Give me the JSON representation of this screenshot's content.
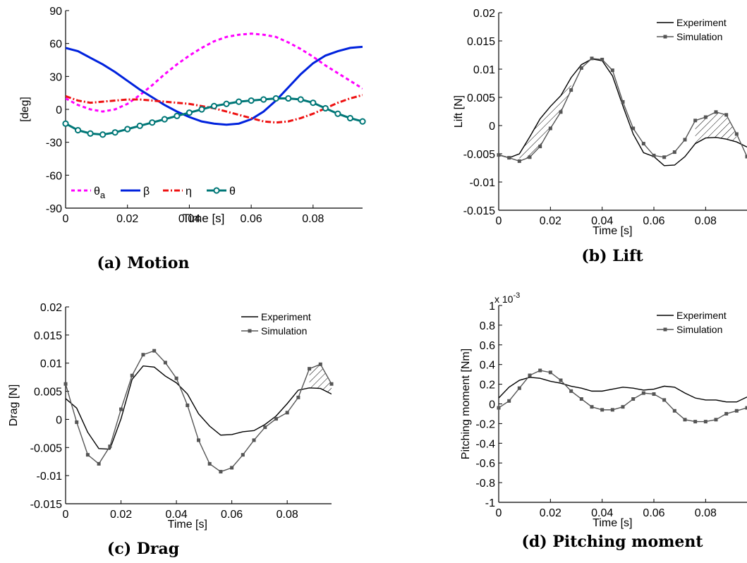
{
  "chart_data": [
    {
      "id": "a",
      "type": "line",
      "caption": "(a) Motion",
      "xlabel": "Time [s]",
      "ylabel": "[deg]",
      "xlim": [
        0,
        0.096
      ],
      "ylim": [
        -90,
        90
      ],
      "xticks": [
        0,
        0.02,
        0.04,
        0.06,
        0.08
      ],
      "xtick_labels": [
        "0",
        "0.02",
        "0.04",
        "0.06",
        "0.08"
      ],
      "yticks": [
        90,
        60,
        30,
        0,
        -30,
        -60,
        -90
      ],
      "ytick_labels": [
        "90",
        "60",
        "30",
        "0",
        "-30",
        "-60",
        "-90"
      ],
      "legend_position": "bottom-left",
      "series": [
        {
          "name": "θa",
          "color": "#ff00ff",
          "style": "dashed",
          "x": [
            0,
            0.004,
            0.008,
            0.012,
            0.016,
            0.02,
            0.024,
            0.028,
            0.032,
            0.036,
            0.04,
            0.044,
            0.048,
            0.052,
            0.056,
            0.06,
            0.064,
            0.068,
            0.072,
            0.076,
            0.08,
            0.084,
            0.088,
            0.092,
            0.096
          ],
          "values": [
            10,
            4,
            0,
            -2,
            0,
            5,
            13,
            22,
            32,
            41,
            49,
            56,
            62,
            66,
            68,
            69,
            68,
            66,
            61,
            55,
            48,
            40,
            33,
            26,
            19
          ]
        },
        {
          "name": "β",
          "color": "#0022dd",
          "style": "solid",
          "x": [
            0,
            0.004,
            0.008,
            0.012,
            0.016,
            0.02,
            0.024,
            0.028,
            0.032,
            0.036,
            0.04,
            0.044,
            0.048,
            0.052,
            0.056,
            0.06,
            0.064,
            0.068,
            0.072,
            0.076,
            0.08,
            0.084,
            0.088,
            0.092,
            0.096
          ],
          "values": [
            56,
            53,
            47,
            41,
            34,
            26,
            18,
            11,
            4,
            -2,
            -7,
            -11,
            -13,
            -14,
            -13,
            -9,
            -2,
            8,
            20,
            32,
            42,
            49,
            53,
            56,
            57
          ]
        },
        {
          "name": "η",
          "color": "#ee1111",
          "style": "dashdot",
          "x": [
            0,
            0.004,
            0.008,
            0.012,
            0.016,
            0.02,
            0.024,
            0.028,
            0.032,
            0.036,
            0.04,
            0.044,
            0.048,
            0.052,
            0.056,
            0.06,
            0.064,
            0.068,
            0.072,
            0.076,
            0.08,
            0.084,
            0.088,
            0.092,
            0.096
          ],
          "values": [
            12,
            8,
            6,
            7,
            8,
            9,
            9,
            8,
            7,
            6,
            5,
            3,
            1,
            -2,
            -5,
            -8,
            -11,
            -12,
            -11,
            -8,
            -4,
            1,
            6,
            10,
            13
          ]
        },
        {
          "name": "θ",
          "color": "#007777",
          "style": "solid-markers",
          "x": [
            0,
            0.004,
            0.008,
            0.012,
            0.016,
            0.02,
            0.024,
            0.028,
            0.032,
            0.036,
            0.04,
            0.044,
            0.048,
            0.052,
            0.056,
            0.06,
            0.064,
            0.068,
            0.072,
            0.076,
            0.08,
            0.084,
            0.088,
            0.092,
            0.096
          ],
          "values": [
            -13,
            -19,
            -22,
            -23,
            -21,
            -18,
            -15,
            -12,
            -9,
            -6,
            -3,
            0,
            3,
            5,
            7,
            8,
            9,
            10,
            10,
            9,
            6,
            1,
            -4,
            -8,
            -11
          ]
        }
      ]
    },
    {
      "id": "b",
      "type": "line",
      "caption": "(b) Lift",
      "xlabel": "Time [s]",
      "ylabel": "Lift [N]",
      "xlim": [
        0,
        0.096
      ],
      "ylim": [
        -0.015,
        0.02
      ],
      "xticks": [
        0,
        0.02,
        0.04,
        0.06,
        0.08
      ],
      "xtick_labels": [
        "0",
        "0.02",
        "0.04",
        "0.06",
        "0.08"
      ],
      "yticks": [
        0.02,
        0.015,
        0.01,
        0.005,
        0,
        -0.005,
        -0.01,
        -0.015
      ],
      "ytick_labels": [
        "0.02",
        "0.015",
        "0.01",
        "0.005",
        "0",
        "-0.005",
        "-0.01",
        "-0.015"
      ],
      "legend_position": "top-right",
      "hatched_regions": [
        [
          0.006,
          0.03
        ],
        [
          0.076,
          0.092
        ]
      ],
      "series": [
        {
          "name": "Experiment",
          "color": "#000000",
          "style": "solid",
          "x": [
            0,
            0.004,
            0.008,
            0.012,
            0.016,
            0.02,
            0.024,
            0.028,
            0.032,
            0.036,
            0.04,
            0.044,
            0.048,
            0.052,
            0.056,
            0.06,
            0.064,
            0.068,
            0.072,
            0.076,
            0.08,
            0.084,
            0.088,
            0.092,
            0.096
          ],
          "values": [
            -0.0052,
            -0.0057,
            -0.005,
            -0.002,
            0.0012,
            0.0034,
            0.0053,
            0.0085,
            0.0108,
            0.0118,
            0.0115,
            0.0088,
            0.0035,
            -0.0015,
            -0.0048,
            -0.0055,
            -0.0071,
            -0.007,
            -0.0055,
            -0.0032,
            -0.0022,
            -0.0021,
            -0.0024,
            -0.0029,
            -0.0038
          ]
        },
        {
          "name": "Simulation",
          "color": "#555555",
          "style": "solid-markers",
          "x": [
            0,
            0.004,
            0.008,
            0.012,
            0.016,
            0.02,
            0.024,
            0.028,
            0.032,
            0.036,
            0.04,
            0.044,
            0.048,
            0.052,
            0.056,
            0.06,
            0.064,
            0.068,
            0.072,
            0.076,
            0.08,
            0.084,
            0.088,
            0.092,
            0.096
          ],
          "values": [
            -0.0052,
            -0.0057,
            -0.0063,
            -0.0056,
            -0.0037,
            -0.0005,
            0.0024,
            0.0063,
            0.0102,
            0.0119,
            0.0117,
            0.0098,
            0.0042,
            -0.0005,
            -0.0032,
            -0.0053,
            -0.0056,
            -0.0047,
            -0.0025,
            0.0009,
            0.0015,
            0.0024,
            0.0019,
            -0.0015,
            -0.0055
          ]
        }
      ]
    },
    {
      "id": "c",
      "type": "line",
      "caption": "(c) Drag",
      "xlabel": "Time [s]",
      "ylabel": "Drag [N]",
      "xlim": [
        0,
        0.096
      ],
      "ylim": [
        -0.015,
        0.02
      ],
      "xticks": [
        0,
        0.02,
        0.04,
        0.06,
        0.08
      ],
      "xtick_labels": [
        "0",
        "0.02",
        "0.04",
        "0.06",
        "0.08"
      ],
      "yticks": [
        0.02,
        0.015,
        0.01,
        0.005,
        0,
        -0.005,
        -0.01,
        -0.015
      ],
      "ytick_labels": [
        "0.02",
        "0.015",
        "0.01",
        "0.005",
        "0",
        "-0.005",
        "-0.01",
        "-0.015"
      ],
      "legend_position": "top-right",
      "hatched_regions": [
        [
          0.088,
          0.096
        ]
      ],
      "series": [
        {
          "name": "Experiment",
          "color": "#000000",
          "style": "solid",
          "x": [
            0,
            0.004,
            0.008,
            0.012,
            0.016,
            0.02,
            0.024,
            0.028,
            0.032,
            0.036,
            0.04,
            0.044,
            0.048,
            0.052,
            0.056,
            0.06,
            0.064,
            0.068,
            0.072,
            0.076,
            0.08,
            0.084,
            0.088,
            0.092,
            0.096
          ],
          "values": [
            0.0037,
            0.002,
            -0.0023,
            -0.0052,
            -0.0053,
            0.0001,
            0.0071,
            0.0095,
            0.0093,
            0.0077,
            0.0065,
            0.0045,
            0.001,
            -0.0012,
            -0.0028,
            -0.0027,
            -0.0022,
            -0.002,
            -0.0009,
            0.0006,
            0.0028,
            0.0052,
            0.0056,
            0.0055,
            0.0045
          ]
        },
        {
          "name": "Simulation",
          "color": "#555555",
          "style": "solid-markers",
          "x": [
            0,
            0.004,
            0.008,
            0.012,
            0.016,
            0.02,
            0.024,
            0.028,
            0.032,
            0.036,
            0.04,
            0.044,
            0.048,
            0.052,
            0.056,
            0.06,
            0.064,
            0.068,
            0.072,
            0.076,
            0.08,
            0.084,
            0.088,
            0.092,
            0.096
          ],
          "values": [
            0.0063,
            -0.0005,
            -0.0063,
            -0.0079,
            -0.0048,
            0.0018,
            0.0078,
            0.0115,
            0.0122,
            0.0101,
            0.0073,
            0.0025,
            -0.0037,
            -0.0079,
            -0.0093,
            -0.0086,
            -0.0063,
            -0.0037,
            -0.0014,
            0.0001,
            0.0012,
            0.0039,
            0.009,
            0.0098,
            0.0063
          ]
        }
      ]
    },
    {
      "id": "d",
      "type": "line",
      "caption": "(d) Pitching moment",
      "xlabel": "Time [s]",
      "ylabel": "Pitching moment [Nm]",
      "scale_multiplier": "x 10",
      "scale_exponent": "-3",
      "xlim": [
        0,
        0.096
      ],
      "ylim": [
        -1,
        1
      ],
      "xticks": [
        0,
        0.02,
        0.04,
        0.06,
        0.08
      ],
      "xtick_labels": [
        "0",
        "0.02",
        "0.04",
        "0.06",
        "0.08"
      ],
      "yticks": [
        1,
        0.8,
        0.6,
        0.4,
        0.2,
        0,
        -0.2,
        -0.4,
        -0.6,
        -0.8,
        -1
      ],
      "ytick_labels": [
        "1",
        "0.8",
        "0.6",
        "0.4",
        "0.2",
        "0",
        "-0.2",
        "-0.4",
        "-0.6",
        "-0.8",
        "-1"
      ],
      "legend_position": "top-right",
      "series": [
        {
          "name": "Experiment",
          "color": "#000000",
          "style": "solid",
          "x": [
            0,
            0.004,
            0.008,
            0.012,
            0.016,
            0.02,
            0.024,
            0.028,
            0.032,
            0.036,
            0.04,
            0.044,
            0.048,
            0.052,
            0.056,
            0.06,
            0.064,
            0.068,
            0.072,
            0.076,
            0.08,
            0.084,
            0.088,
            0.092,
            0.096
          ],
          "values": [
            0.06,
            0.17,
            0.24,
            0.27,
            0.26,
            0.23,
            0.21,
            0.18,
            0.16,
            0.13,
            0.13,
            0.15,
            0.17,
            0.16,
            0.14,
            0.15,
            0.18,
            0.17,
            0.11,
            0.06,
            0.04,
            0.04,
            0.02,
            0.02,
            0.07
          ]
        },
        {
          "name": "Simulation",
          "color": "#555555",
          "style": "solid-markers",
          "x": [
            0,
            0.004,
            0.008,
            0.012,
            0.016,
            0.02,
            0.024,
            0.028,
            0.032,
            0.036,
            0.04,
            0.044,
            0.048,
            0.052,
            0.056,
            0.06,
            0.064,
            0.068,
            0.072,
            0.076,
            0.08,
            0.084,
            0.088,
            0.092,
            0.096
          ],
          "values": [
            -0.04,
            0.03,
            0.16,
            0.29,
            0.34,
            0.32,
            0.24,
            0.13,
            0.05,
            -0.03,
            -0.06,
            -0.06,
            -0.03,
            0.05,
            0.11,
            0.1,
            0.04,
            -0.07,
            -0.16,
            -0.18,
            -0.18,
            -0.16,
            -0.1,
            -0.07,
            -0.04
          ]
        }
      ]
    }
  ]
}
